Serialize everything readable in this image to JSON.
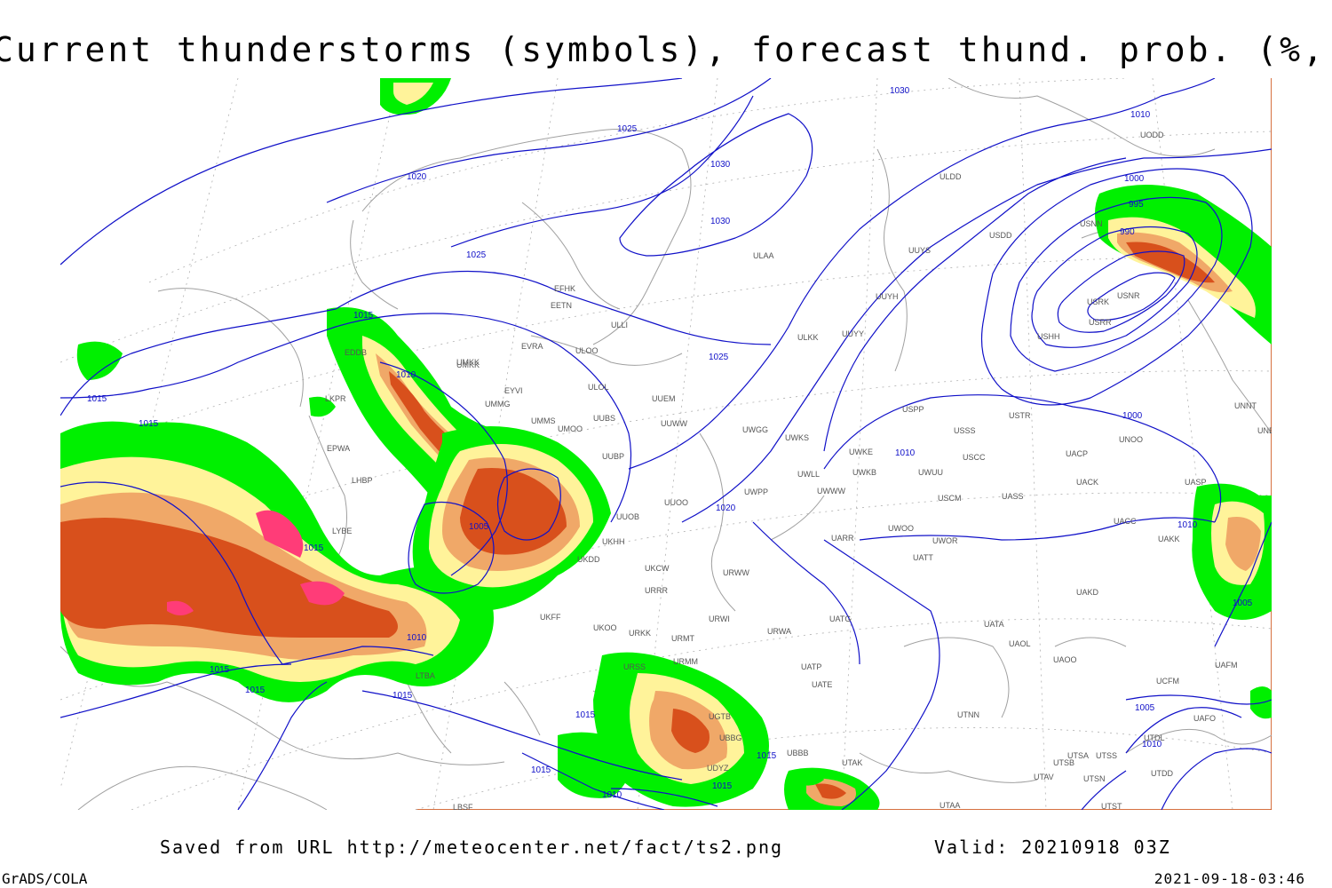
{
  "header": {
    "title": "Current thunderstorms (symbols), forecast thund. prob. (%, shaded)"
  },
  "footer": {
    "saved_from": "Saved from URL http://meteocenter.net/fact/ts2.png",
    "valid": "Valid: 20210918 03Z",
    "software": "GrADS/COLA",
    "timestamp": "2021-09-18-03:46"
  },
  "map": {
    "colors": {
      "isobar": "#1010c8",
      "coast": "#a0a0a0",
      "prob_low": "#00f000",
      "prob_mid": "#fff39a",
      "prob_high": "#f0a868",
      "prob_vhigh": "#d8501c",
      "prob_max": "#ff3c78",
      "frame_right": "#c84000"
    },
    "isobar_labels": [
      "1030",
      "1010",
      "1025",
      "1030",
      "1030",
      "1020",
      "1025",
      "1015",
      "1010",
      "1015",
      "1015",
      "1025",
      "1005",
      "995",
      "990",
      "1000",
      "1000",
      "1010",
      "1020",
      "1015",
      "1005",
      "1015",
      "1010",
      "1015",
      "1015",
      "1010",
      "1015",
      "1005",
      "1010",
      "1015",
      "1015",
      "1010",
      "1015"
    ],
    "station_labels": [
      "UODD",
      "ULDD",
      "USDD",
      "UUYS",
      "USNN",
      "USRK",
      "USRR",
      "USNR",
      "USHH",
      "UUYH",
      "ULAA",
      "EFHK",
      "EETN",
      "ULLI",
      "EVRA",
      "ULOO",
      "UMKK",
      "UUYY",
      "ULKK",
      "UUEM",
      "ULOL",
      "EYVI",
      "UMMG",
      "UMMS",
      "UMOO",
      "UUBS",
      "UUWW",
      "UWGG",
      "UWKS",
      "UWKE",
      "UWKB",
      "UWLL",
      "UWWW",
      "UWPP",
      "USPP",
      "USTR",
      "USSS",
      "USCC",
      "UNOO",
      "UNNT",
      "UNBB",
      "UACP",
      "UACK",
      "UASP",
      "UUBP",
      "UUOO",
      "UUOB",
      "UKHH",
      "UKDD",
      "UKCW",
      "URRR",
      "URWI",
      "URWA",
      "URWW",
      "UATG",
      "UATA",
      "UAOL",
      "UAOO",
      "UATP",
      "UATE",
      "UTNN",
      "UTAK",
      "UTAA",
      "UTSA",
      "UTSS",
      "UTSB",
      "UTAV",
      "UTSN",
      "UTST",
      "UTDD",
      "UTDL",
      "UAFO",
      "UCFM",
      "UAFM",
      "UACC",
      "UAKK",
      "UAKD",
      "UARR",
      "UWOO",
      "UWOR",
      "UATT",
      "USCM",
      "UASS",
      "UWUU",
      "UMKK",
      "EPWA",
      "LHBP",
      "LKPR",
      "EDDB",
      "LYBE",
      "LTBA",
      "UKFF",
      "UKOO",
      "URKK",
      "URMT",
      "URMM",
      "URSS",
      "UGTB",
      "UBBG",
      "UBBB",
      "UDYZ",
      "LBSF"
    ]
  }
}
